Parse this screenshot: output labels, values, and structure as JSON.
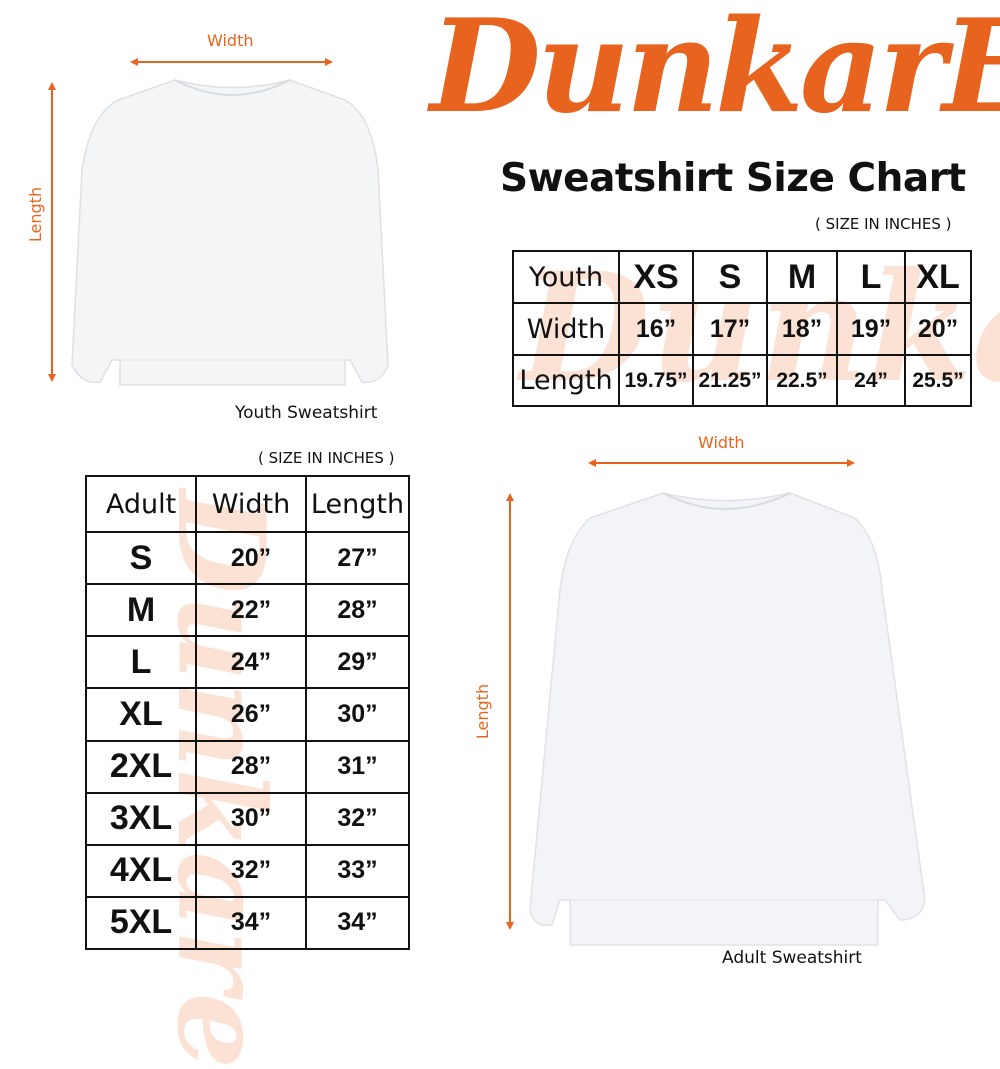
{
  "brand": {
    "logo_text": "DunkarE",
    "color": "#e8641e"
  },
  "title": "Sweatshirt Size Chart",
  "youth": {
    "dim_width": "Width",
    "dim_length": "Length",
    "caption": "Youth Sweatshirt",
    "note": "( SIZE IN INCHES )",
    "table": {
      "header": [
        "Youth",
        "XS",
        "S",
        "M",
        "L",
        "XL"
      ],
      "rows": [
        [
          "Width",
          "16”",
          "17”",
          "18”",
          "19”",
          "20”"
        ],
        [
          "Length",
          "19.75”",
          "21.25”",
          "22.5”",
          "24”",
          "25.5”"
        ]
      ]
    }
  },
  "adult": {
    "dim_width": "Width",
    "dim_length": "Length",
    "caption": "Adult Sweatshirt",
    "note": "( SIZE IN INCHES )",
    "table": {
      "header": [
        "Adult",
        "Width",
        "Length"
      ],
      "rows": [
        [
          "S",
          "20”",
          "27”"
        ],
        [
          "M",
          "22”",
          "28”"
        ],
        [
          "L",
          "24”",
          "29”"
        ],
        [
          "XL",
          "26”",
          "30”"
        ],
        [
          "2XL",
          "28”",
          "31”"
        ],
        [
          "3XL",
          "30”",
          "32”"
        ],
        [
          "4XL",
          "32”",
          "33”"
        ],
        [
          "5XL",
          "34”",
          "34”"
        ]
      ]
    }
  }
}
